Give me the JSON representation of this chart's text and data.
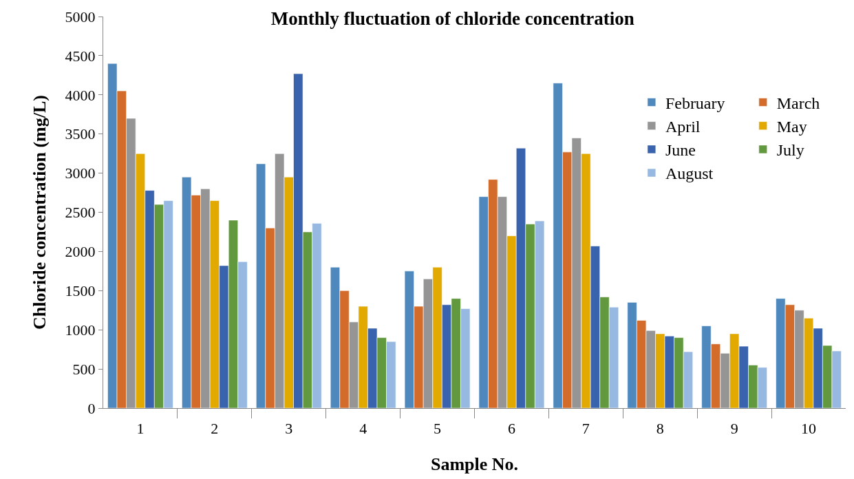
{
  "chart_data": {
    "type": "bar",
    "title": "Monthly fluctuation of chloride concentration",
    "xlabel": "Sample No.",
    "ylabel": "Chloride concentration (mg/L)",
    "categories": [
      "1",
      "2",
      "3",
      "4",
      "5",
      "6",
      "7",
      "8",
      "9",
      "10"
    ],
    "series": [
      {
        "name": "February",
        "color": "#4f88bd",
        "values": [
          4400,
          2950,
          3120,
          1800,
          1750,
          2700,
          4150,
          1350,
          1050,
          1400
        ]
      },
      {
        "name": "March",
        "color": "#d36c2a",
        "values": [
          4050,
          2720,
          2300,
          1500,
          1300,
          2920,
          3270,
          1120,
          820,
          1320
        ]
      },
      {
        "name": "April",
        "color": "#959595",
        "values": [
          3700,
          2800,
          3250,
          1100,
          1650,
          2700,
          3450,
          990,
          700,
          1250
        ]
      },
      {
        "name": "May",
        "color": "#e2aa00",
        "values": [
          3250,
          2650,
          2950,
          1300,
          1800,
          2200,
          3250,
          950,
          950,
          1150
        ]
      },
      {
        "name": "June",
        "color": "#3a63ad",
        "values": [
          2780,
          1820,
          4270,
          1020,
          1320,
          3320,
          2070,
          920,
          790,
          1020
        ]
      },
      {
        "name": "July",
        "color": "#62983e",
        "values": [
          2600,
          2400,
          2250,
          900,
          1400,
          2350,
          1420,
          900,
          550,
          800
        ]
      },
      {
        "name": "August",
        "color": "#97b8e0",
        "values": [
          2650,
          1870,
          2360,
          850,
          1270,
          2390,
          1290,
          720,
          520,
          730
        ]
      }
    ],
    "ylim": [
      0,
      5000
    ],
    "yticks": [
      0,
      500,
      1000,
      1500,
      2000,
      2500,
      3000,
      3500,
      4000,
      4500,
      5000
    ],
    "legend": "top right"
  }
}
